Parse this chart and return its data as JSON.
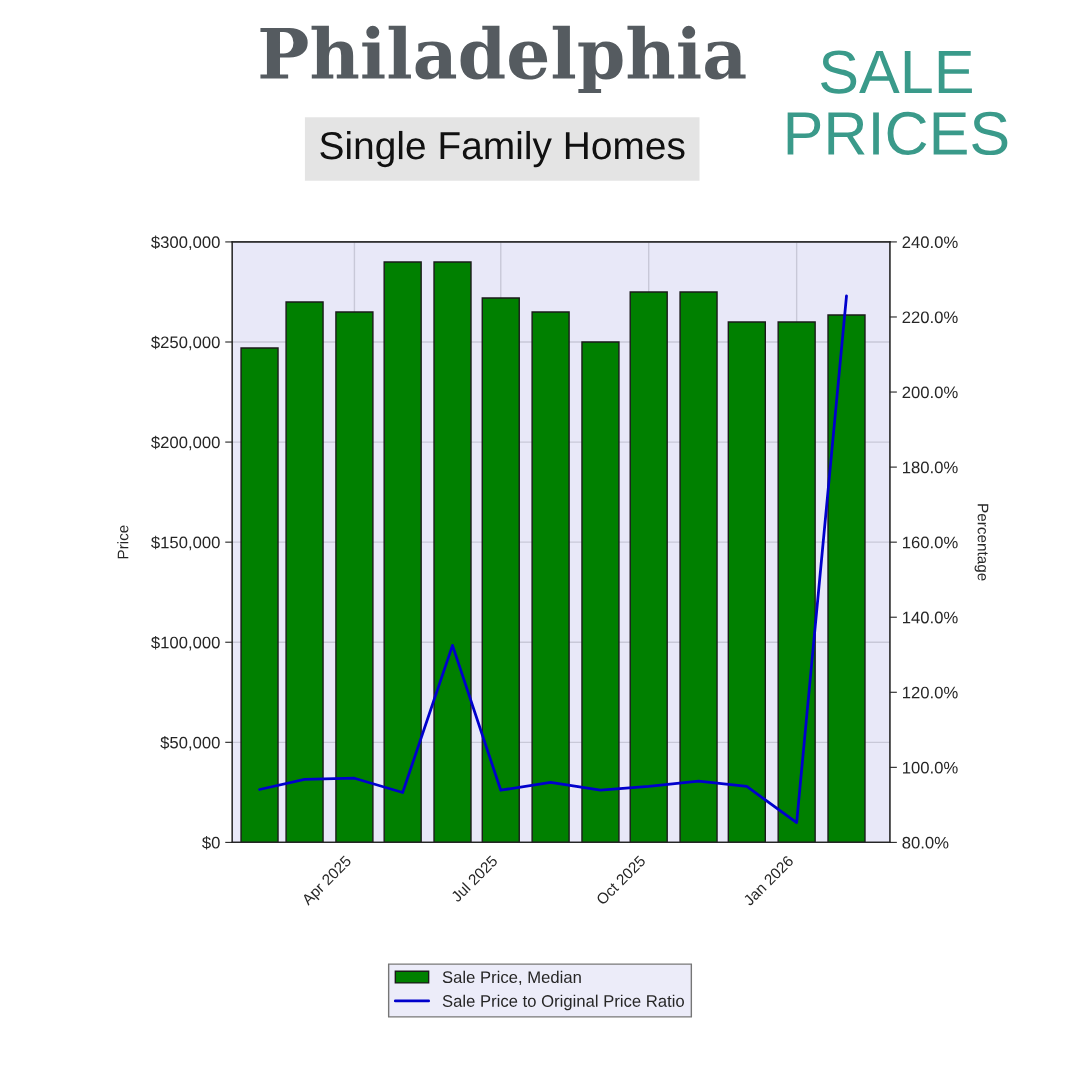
{
  "chart_data": {
    "type": "bar",
    "title": "Philadelphia",
    "subtitle": "Single Family Homes",
    "annotations": [
      "SALE\nPRICES"
    ],
    "x": [
      "2025-02",
      "2025-03",
      "2025-04",
      "2025-05",
      "2025-06",
      "2025-07",
      "2025-08",
      "2025-09",
      "2025-10",
      "2025-11",
      "2025-12",
      "2026-01",
      "2026-02"
    ],
    "xlim": [
      "2025-01-15",
      "2026-02-28"
    ],
    "xticks": [
      {
        "value": "2025-04",
        "label": "Apr 2025"
      },
      {
        "value": "2025-07",
        "label": "Jul 2025"
      },
      {
        "value": "2025-10",
        "label": "Oct 2025"
      },
      {
        "value": "2026-01",
        "label": "Jan 2026"
      }
    ],
    "ylabel": "Price",
    "y2label": "Percentage",
    "ylim": [
      0,
      300000
    ],
    "yticks": [
      {
        "value": 0,
        "label": "$0"
      },
      {
        "value": 50000,
        "label": "$50,000"
      },
      {
        "value": 100000,
        "label": "$100,000"
      },
      {
        "value": 150000,
        "label": "$150,000"
      },
      {
        "value": 200000,
        "label": "$200,000"
      },
      {
        "value": 250000,
        "label": "$250,000"
      },
      {
        "value": 300000,
        "label": "$300,000"
      }
    ],
    "y2lim": [
      80,
      240
    ],
    "y2ticks": [
      {
        "value": 80,
        "label": "80.0%"
      },
      {
        "value": 100,
        "label": "100.0%"
      },
      {
        "value": 120,
        "label": "120.0%"
      },
      {
        "value": 140,
        "label": "140.0%"
      },
      {
        "value": 160,
        "label": "160.0%"
      },
      {
        "value": 180,
        "label": "180.0%"
      },
      {
        "value": 200,
        "label": "200.0%"
      },
      {
        "value": 220,
        "label": "220.0%"
      },
      {
        "value": 240,
        "label": "240.0%"
      }
    ],
    "series": [
      {
        "name": "Sale Price, Median",
        "color": "#008000",
        "values": [
          247000,
          270000,
          265000,
          290000,
          290000,
          272000,
          265000,
          250000,
          275000,
          275000,
          260000,
          260000,
          263500
        ]
      },
      {
        "name": "Sale Price to Original Price Ratio",
        "type": "line",
        "axis": "y2",
        "color": "#0000cc",
        "values": [
          94.1,
          96.8,
          97.1,
          93.3,
          132.5,
          93.9,
          96.0,
          93.9,
          94.9,
          96.3,
          94.9,
          85.3,
          225.6
        ]
      }
    ],
    "grid": true,
    "legend": "bottom"
  }
}
